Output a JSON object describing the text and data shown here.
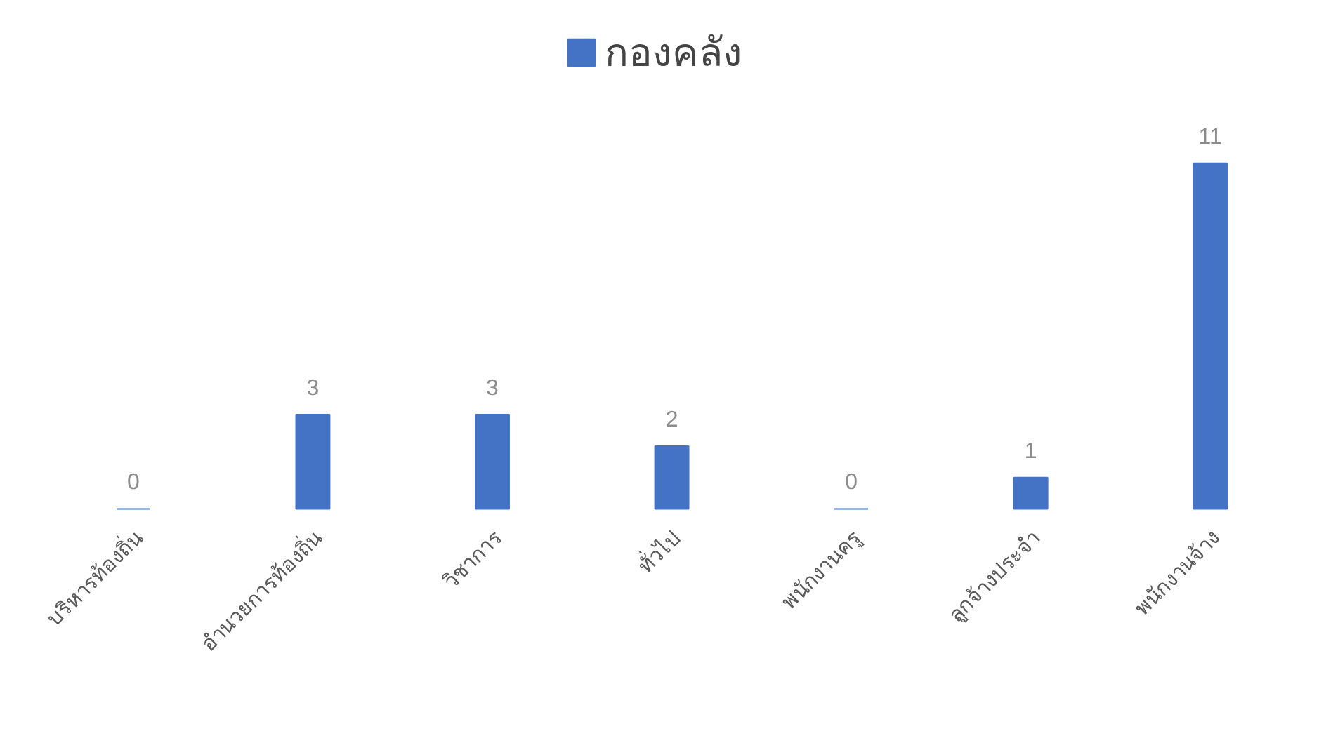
{
  "chart_data": {
    "type": "bar",
    "categories": [
      "บริหารท้องถิ่น",
      "อำนวยการท้องถิ่น",
      "วิชาการ",
      "ทั่วไป",
      "พนักงานครู",
      "ลูกจ้างประจำ",
      "พนักงานจ้าง"
    ],
    "series": [
      {
        "name": "กองคลัง",
        "color": "#4472c4",
        "values": [
          0,
          3,
          3,
          2,
          0,
          1,
          11
        ]
      }
    ],
    "data_labels": true,
    "legend": "top"
  }
}
